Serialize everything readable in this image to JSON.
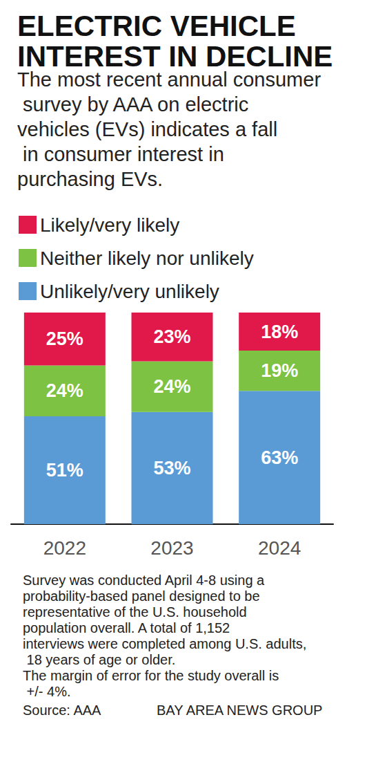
{
  "chart_data": {
    "type": "bar",
    "title": "ELECTRIC VEHICLE INTEREST IN DECLINE",
    "subtitle": "The most recent annual consumer survey by AAA on electric vehicles (EVs) indicates a fall in consumer interest in purchasing EVs.",
    "categories": [
      "2022",
      "2023",
      "2024"
    ],
    "series": [
      {
        "name": "Likely/very likely",
        "color": "#e0194a",
        "values": [
          25,
          23,
          18
        ],
        "value_labels": [
          "25%",
          "23%",
          "18%"
        ]
      },
      {
        "name": "Neither likely nor unlikely",
        "color": "#7dc242",
        "values": [
          24,
          24,
          19
        ],
        "value_labels": [
          "24%",
          "24%",
          "19%"
        ]
      },
      {
        "name": "Unlikely/very unlikely",
        "color": "#5b9bd5",
        "values": [
          51,
          53,
          63
        ],
        "value_labels": [
          "51%",
          "53%",
          "63%"
        ]
      }
    ],
    "ylim": [
      0,
      100
    ],
    "stacked": true,
    "data_labels": true,
    "grid": false,
    "tick_labels": "x",
    "notes": [
      "Survey was conducted April 4-8 using a probability-based panel designed to be representative of the U.S. household population overall. A total of 1,152 interviews were completed among U.S. adults, 18 years of age or older.",
      "The margin of error for the study overall is +/- 4%."
    ],
    "source": "Source: AAA",
    "credit": "BAY AREA NEWS GROUP"
  }
}
